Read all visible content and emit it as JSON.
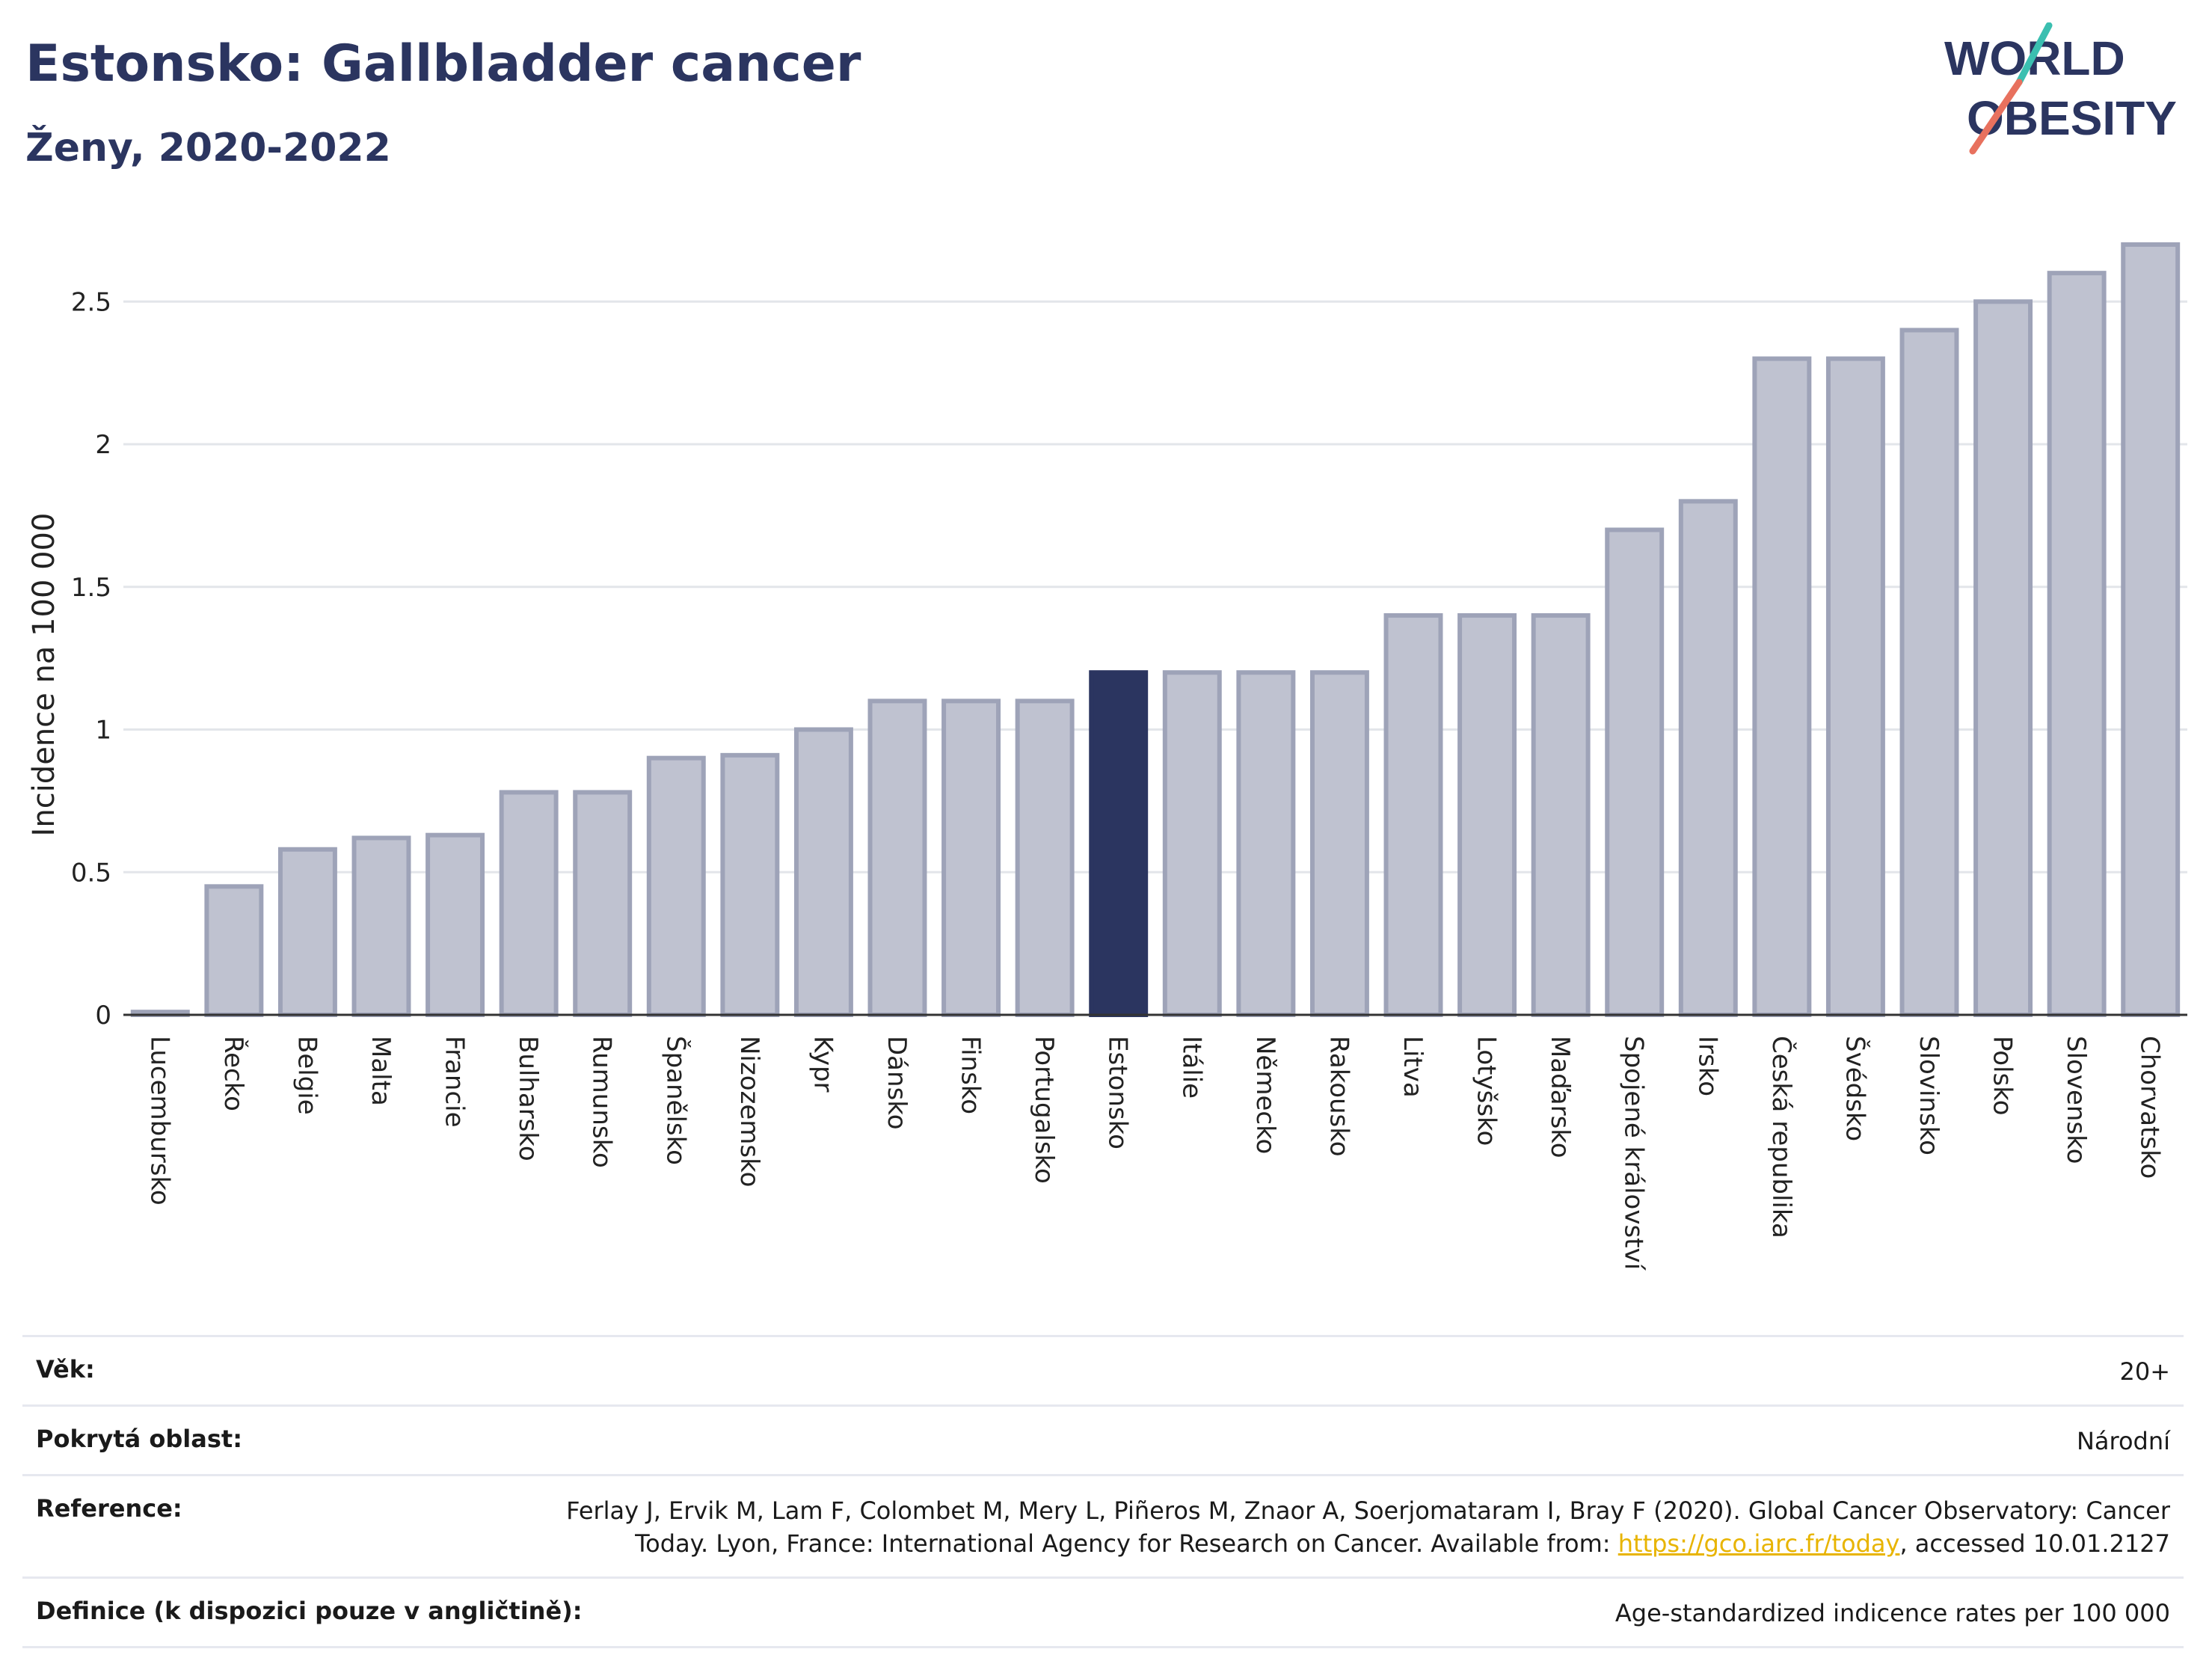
{
  "header": {
    "title": "Estonsko: Gallbladder cancer",
    "subtitle": "Ženy, 2020-2022",
    "logo_line1": "WORLD",
    "logo_line2": "OBESITY"
  },
  "chart_data": {
    "type": "bar",
    "ylabel": "Incidence na 100 000",
    "ylim": [
      0,
      2.7
    ],
    "yticks": [
      0,
      0.5,
      1,
      1.5,
      2,
      2.5
    ],
    "ytick_labels": [
      "0",
      "0.5",
      "1",
      "1.5",
      "2",
      "2.5"
    ],
    "grid": true,
    "highlight": "Estonsko",
    "colors": {
      "bar": "#bfc2d0",
      "bar_border": "#9ea3b8",
      "highlight": "#2b3560",
      "grid": "#e3e5ea",
      "axis": "#333333"
    },
    "categories": [
      "Lucembursko",
      "Řecko",
      "Belgie",
      "Malta",
      "Francie",
      "Bulharsko",
      "Rumunsko",
      "Španělsko",
      "Nizozemsko",
      "Kypr",
      "Dánsko",
      "Finsko",
      "Portugalsko",
      "Estonsko",
      "Itálie",
      "Německo",
      "Rakousko",
      "Litva",
      "Lotyšsko",
      "Maďarsko",
      "Spojené království",
      "Irsko",
      "Česká republika",
      "Švédsko",
      "Slovinsko",
      "Polsko",
      "Slovensko",
      "Chorvatsko"
    ],
    "values": [
      0.01,
      0.45,
      0.58,
      0.62,
      0.63,
      0.78,
      0.78,
      0.9,
      0.91,
      1.0,
      1.1,
      1.1,
      1.1,
      1.2,
      1.2,
      1.2,
      1.2,
      1.4,
      1.4,
      1.4,
      1.7,
      1.8,
      2.3,
      2.3,
      2.4,
      2.5,
      2.6,
      2.7
    ]
  },
  "meta": {
    "age_label": "Věk:",
    "age_value": "20+",
    "area_label": "Pokrytá oblast:",
    "area_value": "Národní",
    "reference_label": "Reference:",
    "reference_text_1": "Ferlay J, Ervik M, Lam F, Colombet M, Mery L, Piñeros M, Znaor A, Soerjomataram I, Bray F (2020). Global Cancer Observatory: Cancer",
    "reference_text_2": "Today. Lyon, France: International Agency for Research on Cancer. Available from: ",
    "reference_link": "https://gco.iarc.fr/today",
    "reference_text_3": ", accessed 10.01.2127",
    "definition_label": "Definice (k dispozici pouze v angličtině):",
    "definition_value": "Age-standardized indicence rates per 100 000"
  }
}
